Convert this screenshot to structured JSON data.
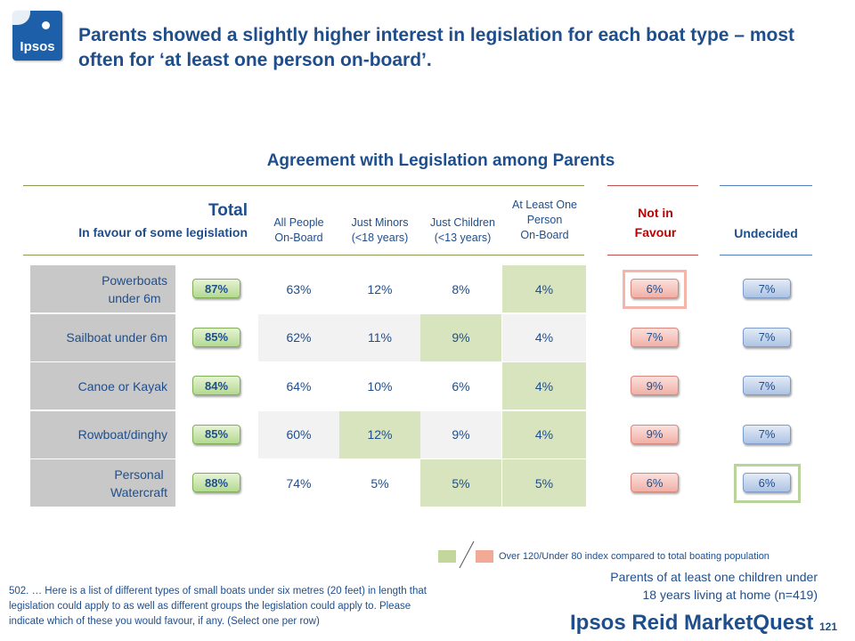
{
  "logo": {
    "text": "Ipsos"
  },
  "slide_title": "Parents showed a slightly higher interest in legislation for each boat type – most often for ‘at least one person on-board’.",
  "chart_data": {
    "type": "table",
    "title": "Agreement with Legislation among Parents",
    "total_header": "Total",
    "total_subheader": "In favour of some legislation",
    "columns": [
      {
        "key": "all",
        "label_lines": [
          "All People",
          "On-Board"
        ]
      },
      {
        "key": "minors",
        "label_lines": [
          "Just Minors",
          "(<18 years)"
        ]
      },
      {
        "key": "children",
        "label_lines": [
          "Just Children",
          "(<13 years)"
        ]
      },
      {
        "key": "one",
        "label_lines": [
          "At Least One",
          "Person",
          "On-Board"
        ]
      }
    ],
    "not_in_favour_header": [
      "Not in",
      "Favour"
    ],
    "undecided_header": "Undecided",
    "rows": [
      {
        "label_lines": [
          "Powerboats",
          "under 6m"
        ],
        "total": "87%",
        "values": [
          "63%",
          "12%",
          "8%",
          "4%"
        ],
        "highlight": [
          null,
          null,
          null,
          "green"
        ],
        "not_in_favour": "6%",
        "undecided": "7%"
      },
      {
        "label_lines": [
          "Sailboat under 6m"
        ],
        "total": "85%",
        "values": [
          "62%",
          "11%",
          "9%",
          "4%"
        ],
        "highlight": [
          null,
          null,
          "green",
          null
        ],
        "not_in_favour": "7%",
        "undecided": "7%"
      },
      {
        "label_lines": [
          "Canoe or Kayak"
        ],
        "total": "84%",
        "values": [
          "64%",
          "10%",
          "6%",
          "4%"
        ],
        "highlight": [
          null,
          null,
          null,
          "green"
        ],
        "not_in_favour": "9%",
        "undecided": "7%"
      },
      {
        "label_lines": [
          "Rowboat/dinghy"
        ],
        "total": "85%",
        "values": [
          "60%",
          "12%",
          "9%",
          "4%"
        ],
        "highlight": [
          null,
          "green",
          null,
          "green"
        ],
        "not_in_favour": "9%",
        "undecided": "7%"
      },
      {
        "label_lines": [
          "Personal",
          "Watercraft"
        ],
        "total": "88%",
        "values": [
          "74%",
          "5%",
          "5%",
          "5%"
        ],
        "highlight": [
          null,
          null,
          "green",
          "green"
        ],
        "not_in_favour": "6%",
        "undecided": "6%"
      }
    ],
    "boxed": {
      "not_in_favour_row": 0,
      "undecided_row": 4
    },
    "colors": {
      "green_highlight": "#d7e4bd",
      "row_shade_a": "#ffffff",
      "row_shade_b": "#f2f2f2",
      "red_box": "#f4b6a8",
      "green_box": "#b9d49a",
      "legend_green": "#c3d69b",
      "legend_red": "#f2aa96"
    }
  },
  "legend": {
    "text": "Over 120/Under 80 index compared to total boating population"
  },
  "base": {
    "lines": [
      "Parents of at least one children under",
      "18 years living at home (n=419)"
    ]
  },
  "footnote": {
    "lines": [
      "502. … Here is a list of different types of small boats under six metres (20 feet) in length that",
      "legislation could apply to as well as different groups the legislation could apply to. Please",
      "indicate which of these you would favour, if any. (Select one per row)"
    ]
  },
  "brand": "Ipsos Reid MarketQuest",
  "page_number": "121"
}
